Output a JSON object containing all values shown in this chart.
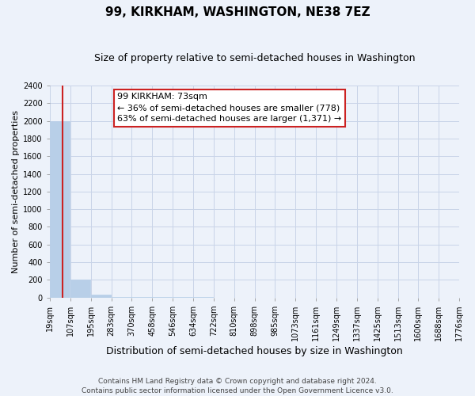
{
  "title": "99, KIRKHAM, WASHINGTON, NE38 7EZ",
  "subtitle": "Size of property relative to semi-detached houses in Washington",
  "xlabel": "Distribution of semi-detached houses by size in Washington",
  "ylabel": "Number of semi-detached properties",
  "footer_line1": "Contains HM Land Registry data © Crown copyright and database right 2024.",
  "footer_line2": "Contains public sector information licensed under the Open Government Licence v3.0.",
  "annotation_title": "99 KIRKHAM: 73sqm",
  "annotation_line1": "← 36% of semi-detached houses are smaller (778)",
  "annotation_line2": "63% of semi-detached houses are larger (1,371) →",
  "property_size": 73,
  "bar_color": "#b8cfe8",
  "highlight_color": "#cc2222",
  "annotation_box_color": "#ffffff",
  "annotation_box_edge": "#cc2222",
  "bg_color": "#edf2fa",
  "grid_color": "#c8d4e8",
  "bin_edges": [
    19,
    107,
    195,
    283,
    370,
    458,
    546,
    634,
    722,
    810,
    898,
    985,
    1073,
    1161,
    1249,
    1337,
    1425,
    1513,
    1600,
    1688,
    1776
  ],
  "bin_labels": [
    "19sqm",
    "107sqm",
    "195sqm",
    "283sqm",
    "370sqm",
    "458sqm",
    "546sqm",
    "634sqm",
    "722sqm",
    "810sqm",
    "898sqm",
    "985sqm",
    "1073sqm",
    "1161sqm",
    "1249sqm",
    "1337sqm",
    "1425sqm",
    "1513sqm",
    "1600sqm",
    "1688sqm",
    "1776sqm"
  ],
  "bar_heights": [
    2000,
    200,
    30,
    5,
    3,
    2,
    1,
    1,
    0,
    0,
    0,
    0,
    0,
    0,
    0,
    0,
    0,
    0,
    0,
    0
  ],
  "ylim": [
    0,
    2400
  ],
  "yticks": [
    0,
    200,
    400,
    600,
    800,
    1000,
    1200,
    1400,
    1600,
    1800,
    2000,
    2200,
    2400
  ],
  "title_fontsize": 11,
  "subtitle_fontsize": 9,
  "xlabel_fontsize": 9,
  "ylabel_fontsize": 8,
  "tick_fontsize": 7,
  "footer_fontsize": 6.5,
  "annotation_fontsize": 8
}
